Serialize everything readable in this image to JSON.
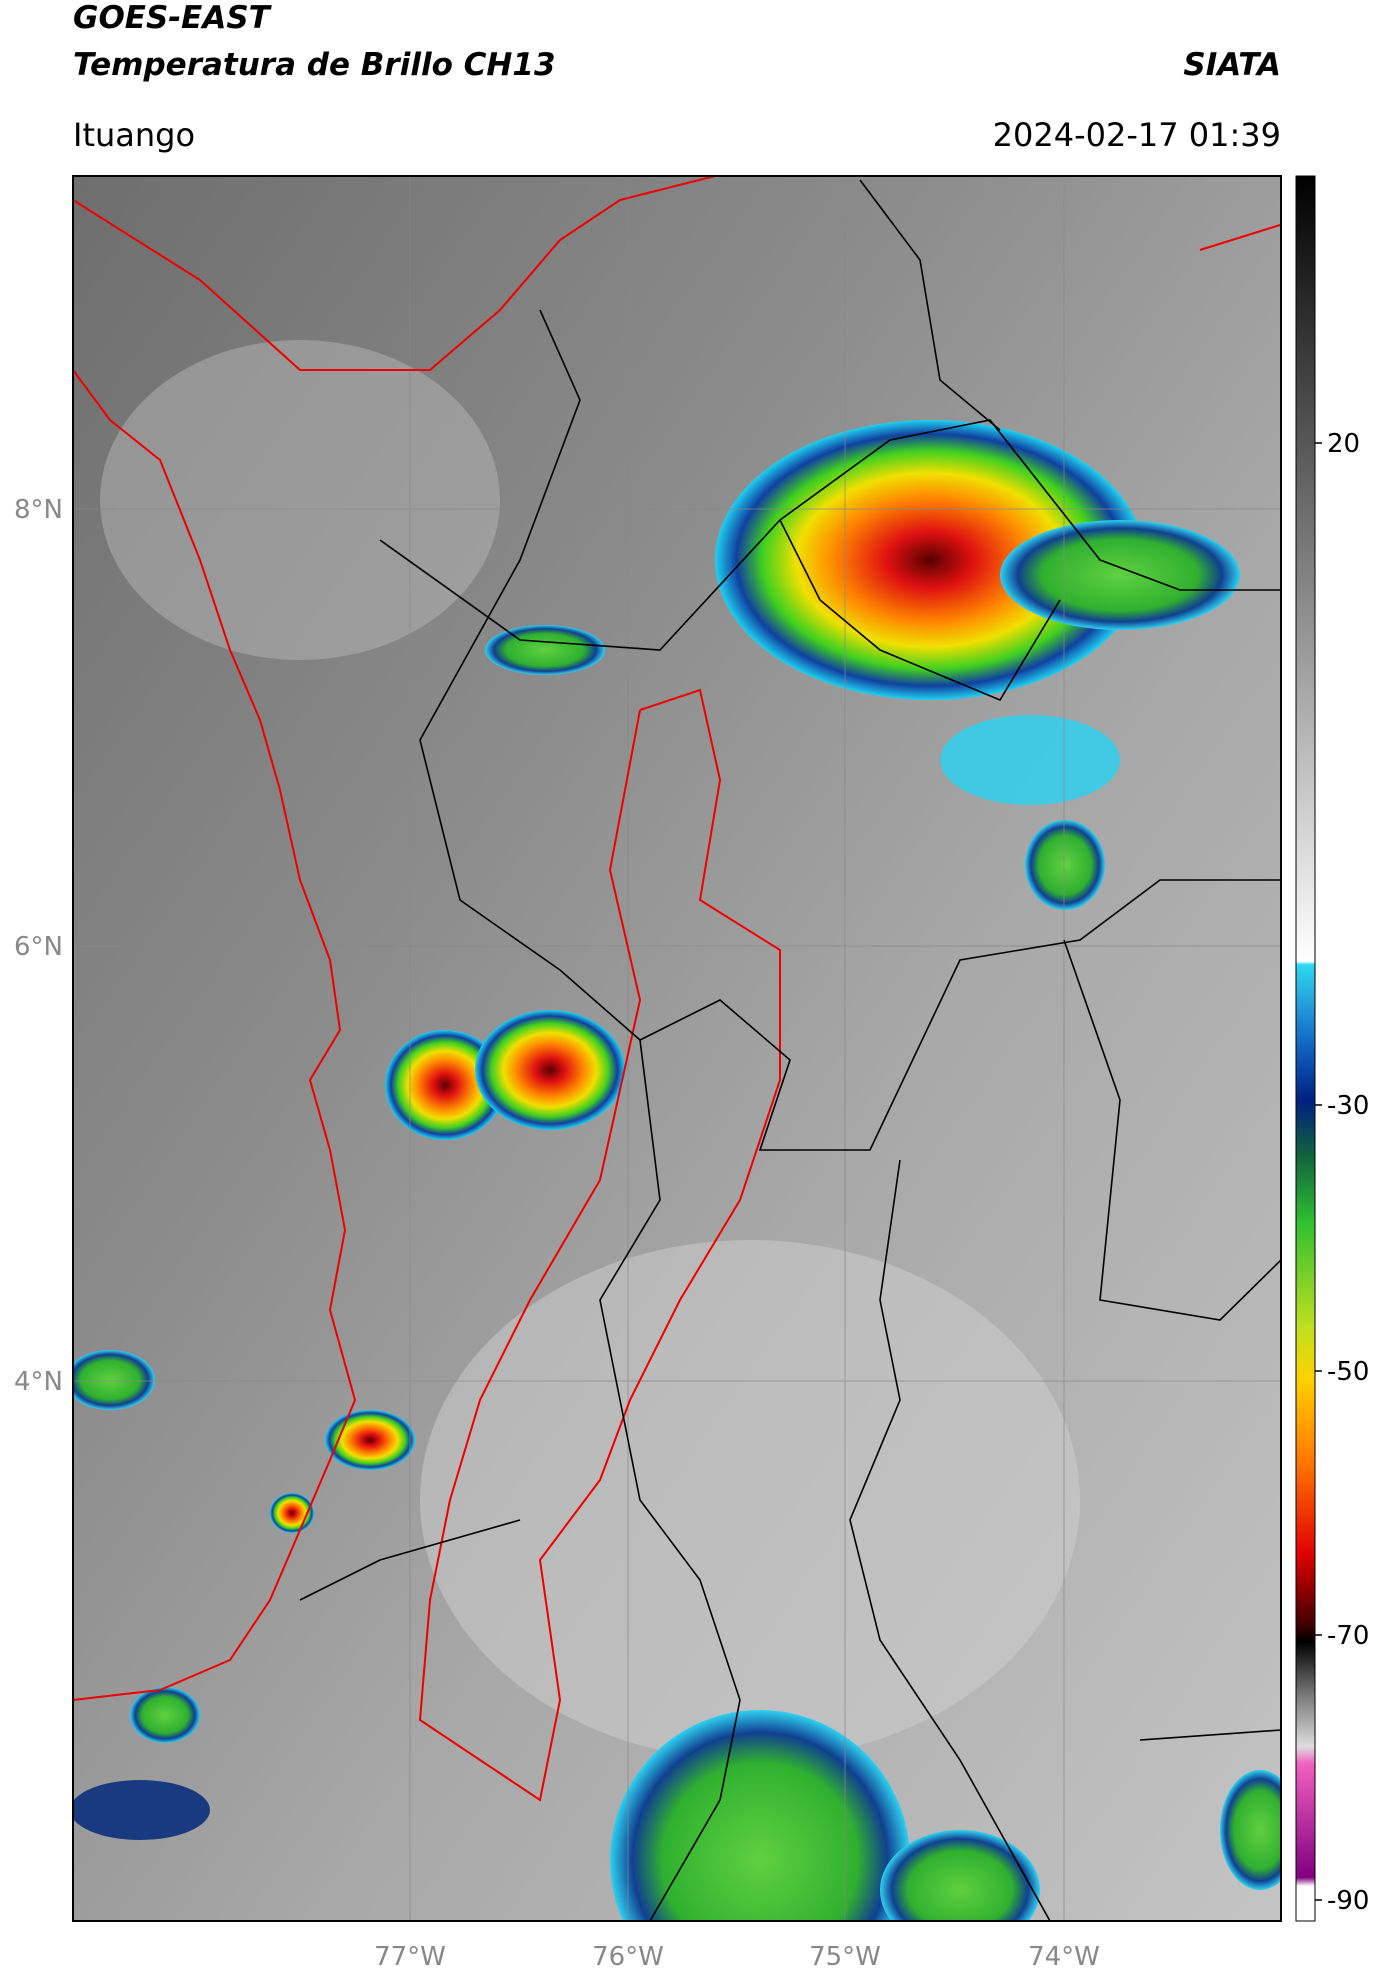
{
  "header": {
    "title": "GOES-EAST",
    "subtitle": "Temperatura de Brillo CH13",
    "brand": "SIATA",
    "location": "Ituango",
    "datetime": "2024-02-17 01:39"
  },
  "map": {
    "lat_labels": [
      "8°N",
      "6°N",
      "4°N"
    ],
    "lon_labels": [
      "77°W",
      "76°W",
      "75°W",
      "74°W"
    ]
  },
  "colorbar": {
    "ticks": [
      20,
      -30,
      -50,
      -70,
      -90
    ]
  }
}
